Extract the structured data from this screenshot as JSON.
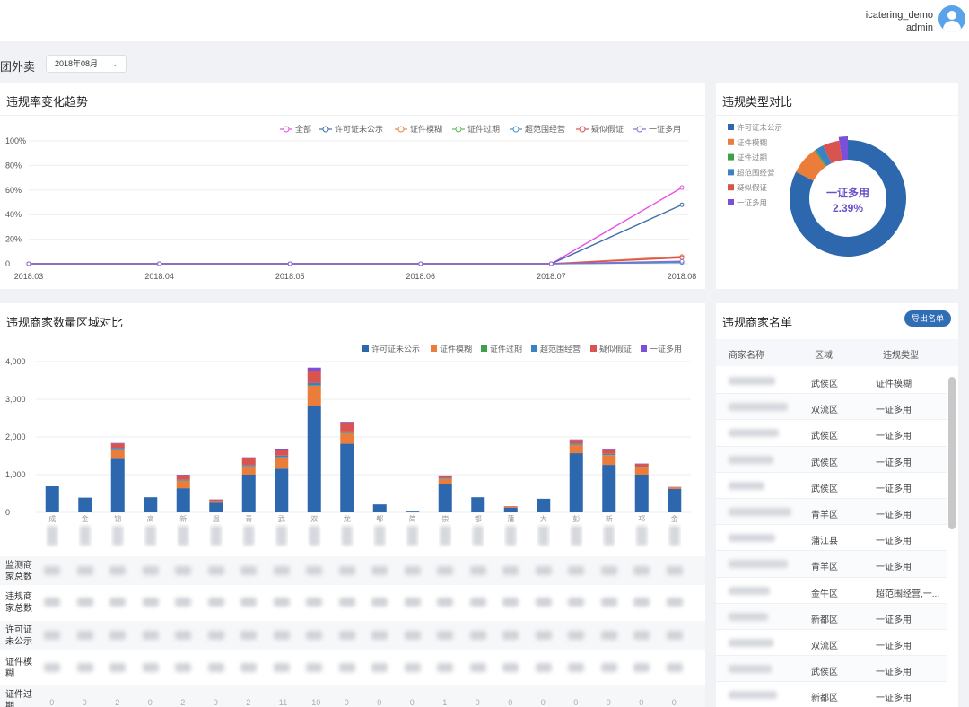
{
  "header": {
    "username": "icatering_demo",
    "role": "admin"
  },
  "filter": {
    "platform": "美团外卖",
    "date": "2018年08月"
  },
  "trend_card": {
    "title": "违规率变化趋势",
    "chart_data": {
      "type": "line",
      "x": [
        "2018.03",
        "2018.04",
        "2018.05",
        "2018.06",
        "2018.07",
        "2018.08"
      ],
      "yticks": [
        "0",
        "20%",
        "40%",
        "60%",
        "80%",
        "100%"
      ],
      "ylim": [
        0,
        100
      ],
      "legend_position": "top-right",
      "grid": true,
      "series": [
        {
          "name": "全部",
          "color": "#e84ce8",
          "values": [
            0,
            0,
            0,
            0,
            0,
            62
          ]
        },
        {
          "name": "许可证未公示",
          "color": "#3d6fa8",
          "values": [
            0,
            0,
            0,
            0,
            0,
            48
          ]
        },
        {
          "name": "证件模糊",
          "color": "#e8834d",
          "values": [
            0,
            0,
            0,
            0,
            0,
            6
          ]
        },
        {
          "name": "证件过期",
          "color": "#5cb85c",
          "values": [
            0,
            0,
            0,
            0,
            0,
            1
          ]
        },
        {
          "name": "超范围经营",
          "color": "#4a90c8",
          "values": [
            0,
            0,
            0,
            0,
            0,
            1
          ]
        },
        {
          "name": "疑似假证",
          "color": "#d9534f",
          "values": [
            0,
            0,
            0,
            0,
            0,
            5
          ]
        },
        {
          "name": "一证多用",
          "color": "#8a6bd6",
          "values": [
            0,
            0,
            0,
            0,
            0,
            2
          ]
        }
      ]
    }
  },
  "type_card": {
    "title": "违规类型对比",
    "center_label": "一证多用",
    "center_value": "2.39%",
    "chart_data": {
      "type": "pie",
      "legend_position": "left",
      "categories": [
        "许可证未公示",
        "证件模糊",
        "证件过期",
        "超范围经营",
        "疑似假证",
        "一证多用"
      ],
      "colors": [
        "#2d67ad",
        "#ea7d3a",
        "#3ca14a",
        "#3b82c4",
        "#d9534f",
        "#7b4fd6"
      ],
      "values": [
        82.5,
        7.8,
        0.4,
        2.3,
        4.6,
        2.39
      ]
    }
  },
  "region_card": {
    "title": "违规商家数量区域对比",
    "chart_data": {
      "type": "bar",
      "stacked": true,
      "legend_position": "top-right",
      "grid": true,
      "ylim": [
        0,
        4000
      ],
      "yticks": [
        "0",
        "1,000",
        "2,000",
        "3,000",
        "4,000"
      ],
      "categories": [
        "成",
        "金",
        "锦",
        "高",
        "新",
        "温",
        "青",
        "武",
        "双",
        "龙",
        "郫",
        "简",
        "崇",
        "都",
        "蒲",
        "大",
        "彭",
        "新",
        "邛",
        "金"
      ],
      "series": [
        {
          "name": "许可证未公示",
          "color": "#2d67ad",
          "values": [
            690,
            390,
            1420,
            400,
            640,
            250,
            1000,
            1160,
            2820,
            1820,
            210,
            20,
            740,
            400,
            120,
            360,
            1570,
            1260,
            1000,
            620
          ]
        },
        {
          "name": "证件模糊",
          "color": "#ea7d3a",
          "values": [
            0,
            0,
            250,
            0,
            200,
            50,
            220,
            300,
            540,
            280,
            0,
            0,
            150,
            0,
            30,
            0,
            220,
            260,
            180,
            40
          ]
        },
        {
          "name": "证件过期",
          "color": "#3ca14a",
          "values": [
            0,
            0,
            5,
            0,
            5,
            0,
            5,
            5,
            10,
            5,
            0,
            0,
            5,
            0,
            0,
            0,
            5,
            5,
            5,
            0
          ]
        },
        {
          "name": "超范围经营",
          "color": "#3b82c4",
          "values": [
            0,
            0,
            30,
            0,
            20,
            10,
            30,
            40,
            60,
            40,
            0,
            0,
            20,
            0,
            5,
            0,
            30,
            30,
            20,
            5
          ]
        },
        {
          "name": "疑似假证",
          "color": "#d9534f",
          "values": [
            0,
            0,
            120,
            0,
            120,
            30,
            180,
            160,
            330,
            220,
            0,
            0,
            60,
            0,
            10,
            0,
            100,
            120,
            80,
            10
          ]
        },
        {
          "name": "一证多用",
          "color": "#7b4fd6",
          "values": [
            0,
            0,
            15,
            0,
            15,
            5,
            25,
            25,
            80,
            35,
            0,
            0,
            5,
            0,
            0,
            0,
            10,
            15,
            10,
            0
          ]
        }
      ]
    },
    "stat_rows": [
      {
        "label": "监测商家总数"
      },
      {
        "label": "违规商家总数"
      },
      {
        "label": "许可证未公示"
      },
      {
        "label": "证件模糊"
      },
      {
        "label": "证件过期",
        "values": [
          "0",
          "0",
          "2",
          "0",
          "2",
          "0",
          "2",
          "11",
          "10",
          "0",
          "0",
          "0",
          "1",
          "0",
          "0",
          "0",
          "0",
          "0",
          "0",
          "0"
        ]
      }
    ]
  },
  "list_card": {
    "title": "违规商家名单",
    "export_label": "导出名单",
    "columns": [
      "商家名称",
      "区域",
      "违规类型"
    ],
    "rows": [
      {
        "region": "武侯区",
        "type": "证件模糊"
      },
      {
        "region": "双流区",
        "type": "一证多用"
      },
      {
        "region": "武侯区",
        "type": "一证多用"
      },
      {
        "region": "武侯区",
        "type": "一证多用"
      },
      {
        "region": "武侯区",
        "type": "一证多用"
      },
      {
        "region": "青羊区",
        "type": "一证多用"
      },
      {
        "region": "蒲江县",
        "type": "一证多用"
      },
      {
        "region": "青羊区",
        "type": "一证多用"
      },
      {
        "region": "金牛区",
        "type": "超范围经营,一..."
      },
      {
        "region": "新都区",
        "type": "一证多用"
      },
      {
        "region": "双流区",
        "type": "一证多用"
      },
      {
        "region": "武侯区",
        "type": "一证多用"
      },
      {
        "region": "新都区",
        "type": "一证多用"
      }
    ]
  }
}
